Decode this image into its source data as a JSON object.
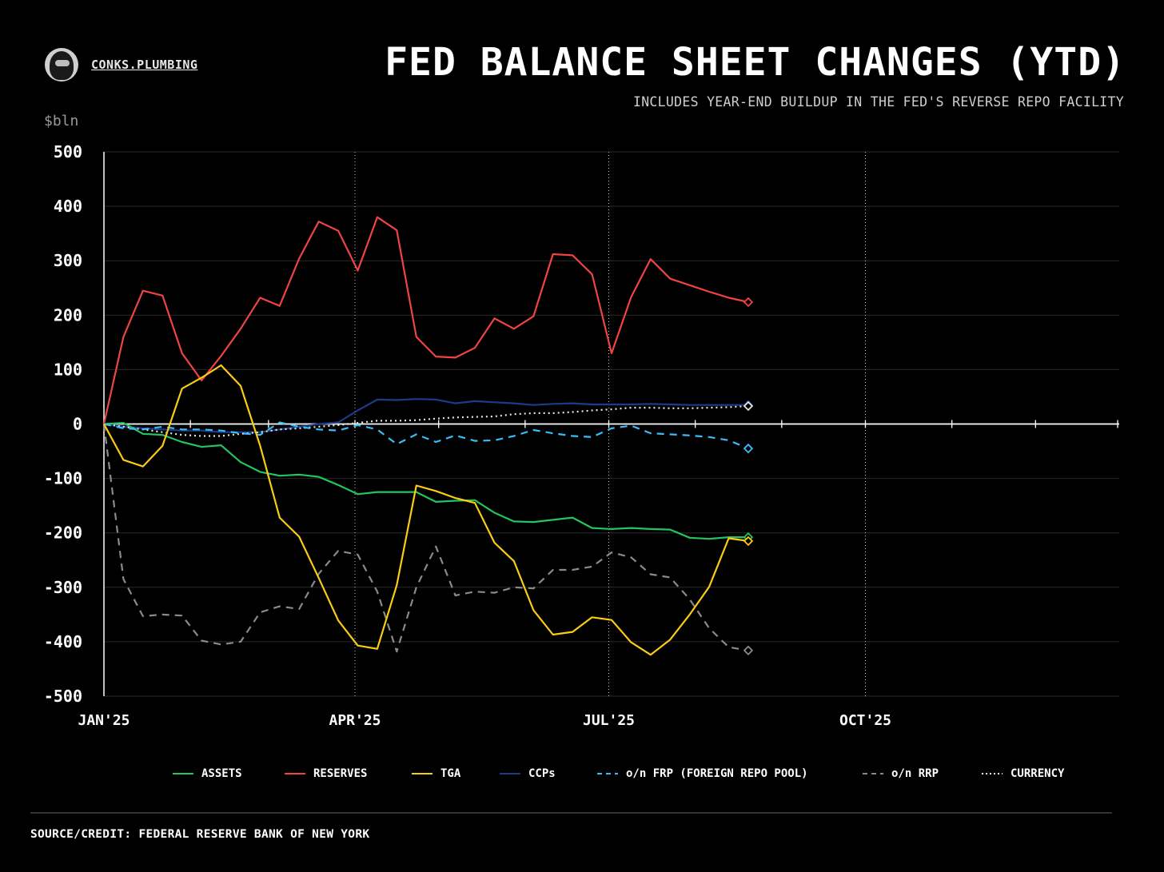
{
  "brand": {
    "name": "CONKS.PLUMBING",
    "avatar_icon": "hooded-figure-avatar"
  },
  "title": "FED BALANCE SHEET CHANGES (YTD)",
  "subtitle": "INCLUDES YEAR-END BUILDUP IN THE FED'S REVERSE REPO FACILITY",
  "unit_label": "$bln",
  "source": "SOURCE/CREDIT: FEDERAL RESERVE BANK OF NEW YORK",
  "chart_data": {
    "type": "line",
    "title": "FED BALANCE SHEET CHANGES (YTD)",
    "subtitle": "INCLUDES YEAR-END BUILDUP IN THE FED'S REVERSE REPO FACILITY",
    "ylabel": "$bln",
    "ylim": [
      -500,
      500
    ],
    "yticks": [
      500,
      400,
      300,
      200,
      100,
      0,
      -100,
      -200,
      -300,
      -400,
      -500
    ],
    "xlim": [
      "2025-01-01",
      "2025-12-31"
    ],
    "xticks": [
      {
        "label": "JAN'25",
        "date": "2025-01-01"
      },
      {
        "label": "APR'25",
        "date": "2025-04-01"
      },
      {
        "label": "JUL'25",
        "date": "2025-07-01"
      },
      {
        "label": "OCT'25",
        "date": "2025-10-01"
      }
    ],
    "grid": true,
    "legend_position": "bottom",
    "x": [
      "2025-01-01",
      "2025-01-08",
      "2025-01-15",
      "2025-01-22",
      "2025-01-29",
      "2025-02-05",
      "2025-02-12",
      "2025-02-19",
      "2025-02-26",
      "2025-03-05",
      "2025-03-12",
      "2025-03-19",
      "2025-03-26",
      "2025-04-02",
      "2025-04-09",
      "2025-04-16",
      "2025-04-23",
      "2025-04-30",
      "2025-05-07",
      "2025-05-14",
      "2025-05-21",
      "2025-05-28",
      "2025-06-04",
      "2025-06-11",
      "2025-06-18",
      "2025-06-25",
      "2025-07-02",
      "2025-07-09",
      "2025-07-16",
      "2025-07-23",
      "2025-07-30",
      "2025-08-06",
      "2025-08-13",
      "2025-08-20"
    ],
    "series": [
      {
        "name": "ASSETS",
        "color": "#22c55e",
        "style": "solid",
        "values": [
          0,
          2,
          -18,
          -20,
          -33,
          -42,
          -39,
          -70,
          -88,
          -95,
          -93,
          -97,
          -112,
          -129,
          -125,
          -125,
          -125,
          -143,
          -141,
          -140,
          -163,
          -179,
          -180,
          -176,
          -172,
          -191,
          -193,
          -191,
          -193,
          -194,
          -209,
          -211,
          -208,
          -208
        ]
      },
      {
        "name": "RESERVES",
        "color": "#ef4444",
        "style": "solid",
        "values": [
          0,
          160,
          245,
          236,
          130,
          80,
          125,
          175,
          232,
          217,
          304,
          372,
          355,
          282,
          380,
          356,
          160,
          124,
          122,
          140,
          194,
          175,
          198,
          312,
          310,
          275,
          130,
          233,
          303,
          267,
          255,
          243,
          232,
          224
        ]
      },
      {
        "name": "TGA",
        "color": "#facc15",
        "style": "solid",
        "values": [
          0,
          -66,
          -78,
          -40,
          65,
          85,
          108,
          70,
          -40,
          -172,
          -207,
          -283,
          -361,
          -407,
          -413,
          -296,
          -113,
          -123,
          -136,
          -145,
          -218,
          -252,
          -342,
          -387,
          -382,
          -355,
          -360,
          -401,
          -424,
          -396,
          -350,
          -299,
          -210,
          -215
        ]
      },
      {
        "name": "CCPs",
        "color": "#1e3a8a",
        "style": "solid",
        "values": [
          0,
          -5,
          -8,
          -10,
          -12,
          -12,
          -15,
          -15,
          -15,
          -10,
          -5,
          0,
          3,
          25,
          45,
          44,
          46,
          45,
          38,
          42,
          40,
          38,
          35,
          37,
          38,
          36,
          36,
          36,
          37,
          36,
          35,
          35,
          35,
          35
        ]
      },
      {
        "name": "o/n FRP (FOREIGN REPO POOL)",
        "color": "#38bdf8",
        "style": "dashed",
        "values": [
          0,
          -8,
          -10,
          -5,
          -10,
          -10,
          -12,
          -17,
          -20,
          3,
          -5,
          -10,
          -12,
          -2,
          -10,
          -37,
          -19,
          -33,
          -21,
          -31,
          -30,
          -22,
          -11,
          -17,
          -22,
          -24,
          -8,
          -3,
          -17,
          -19,
          -21,
          -24,
          -30,
          -45
        ]
      },
      {
        "name": "o/n RRP",
        "color": "#8a8a8a",
        "style": "dashed",
        "values": [
          0,
          -285,
          -353,
          -350,
          -352,
          -398,
          -405,
          -400,
          -346,
          -335,
          -340,
          -275,
          -233,
          -240,
          -308,
          -418,
          -300,
          -225,
          -315,
          -308,
          -310,
          -300,
          -302,
          -268,
          -268,
          -262,
          -236,
          -245,
          -276,
          -282,
          -322,
          -375,
          -410,
          -416
        ]
      },
      {
        "name": "CURRENCY",
        "color": "#e5e5e5",
        "style": "dotted",
        "values": [
          0,
          -5,
          -10,
          -15,
          -20,
          -22,
          -22,
          -18,
          -15,
          -10,
          -8,
          -5,
          -2,
          2,
          6,
          6,
          7,
          10,
          12,
          13,
          14,
          18,
          20,
          20,
          22,
          25,
          27,
          30,
          30,
          29,
          29,
          30,
          31,
          33
        ]
      }
    ]
  }
}
